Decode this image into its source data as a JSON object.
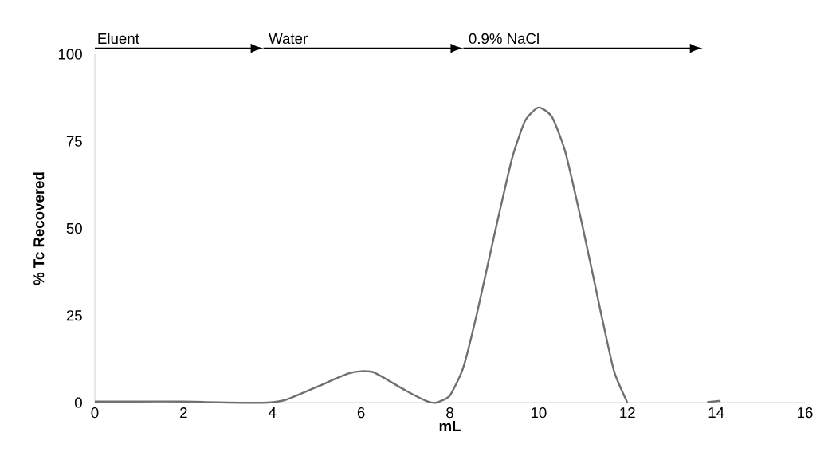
{
  "chart_data": {
    "type": "line",
    "xlabel": "mL",
    "ylabel": "% Tc Recovered",
    "x": [
      0,
      1,
      2,
      3,
      3.9,
      4.3,
      5,
      5.7,
      6,
      6.3,
      7,
      7.5,
      7.7,
      8,
      8.3,
      8.6,
      9,
      9.4,
      9.7,
      10,
      10.3,
      10.6,
      11,
      11.4,
      11.7,
      12,
      13,
      13.8,
      14.1
    ],
    "series": [
      {
        "color": "#707070",
        "values": [
          0.3,
          0.3,
          0.3,
          0,
          0,
          0.8,
          4.5,
          8.3,
          9,
          8.6,
          3.5,
          0.3,
          0,
          2,
          10,
          25,
          48,
          70,
          81,
          84.7,
          82,
          72,
          50,
          26,
          9,
          0,
          null,
          0.1,
          0.5
        ]
      }
    ],
    "xlim": [
      0,
      16
    ],
    "ylim": [
      0,
      100
    ],
    "xticks": [
      0,
      2,
      4,
      6,
      8,
      10,
      12,
      14,
      16
    ],
    "yticks": [
      0,
      25,
      50,
      75,
      100
    ],
    "grid": false,
    "marker": "none",
    "line_style": "solid",
    "annotations": [
      "Eluent",
      "Water",
      "0.9% NaCl"
    ]
  }
}
